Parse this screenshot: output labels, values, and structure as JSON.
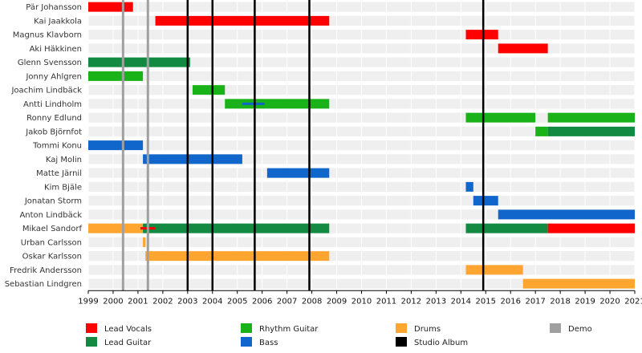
{
  "chart_data": {
    "type": "timeline",
    "title": "",
    "x_range": [
      1999,
      2021
    ],
    "x_ticks": [
      "1999",
      "2000",
      "2001",
      "2002",
      "2003",
      "2004",
      "2005",
      "2006",
      "2007",
      "2008",
      "2009",
      "2010",
      "2011",
      "2012",
      "2013",
      "2014",
      "2015",
      "2016",
      "2017",
      "2018",
      "2019",
      "2020",
      "2021"
    ],
    "colors": {
      "Lead Vocals": "#ff0000",
      "Lead Guitar": "#138a41",
      "Rhythm Guitar": "#19b319",
      "Bass": "#1166cc",
      "Drums": "#ffa530",
      "Studio Album": "#000000",
      "Demo": "#a0a0a0"
    },
    "members": [
      {
        "name": "Pär Johansson",
        "spans": [
          {
            "role": "Lead Vocals",
            "start": 1999.0,
            "end": 2000.8
          }
        ]
      },
      {
        "name": "Kai Jaakkola",
        "spans": [
          {
            "role": "Lead Vocals",
            "start": 2001.7,
            "end": 2008.7
          }
        ]
      },
      {
        "name": "Magnus Klavborn",
        "spans": [
          {
            "role": "Lead Vocals",
            "start": 2014.2,
            "end": 2015.5
          }
        ]
      },
      {
        "name": "Aki Häkkinen",
        "spans": [
          {
            "role": "Lead Vocals",
            "start": 2015.5,
            "end": 2017.5
          }
        ]
      },
      {
        "name": "Glenn Svensson",
        "spans": [
          {
            "role": "Lead Guitar",
            "start": 1999.0,
            "end": 2003.1
          }
        ]
      },
      {
        "name": "Jonny Ahlgren",
        "spans": [
          {
            "role": "Rhythm Guitar",
            "start": 1999.0,
            "end": 2001.2
          }
        ]
      },
      {
        "name": "Joachim Lindbäck",
        "spans": [
          {
            "role": "Rhythm Guitar",
            "start": 2003.2,
            "end": 2004.5
          }
        ]
      },
      {
        "name": "Antti Lindholm",
        "spans": [
          {
            "role": "Rhythm Guitar",
            "start": 2004.5,
            "end": 2008.7
          },
          {
            "role": "Bass",
            "start": 2005.2,
            "end": 2006.1,
            "thin": true
          }
        ]
      },
      {
        "name": "Ronny Edlund",
        "spans": [
          {
            "role": "Rhythm Guitar",
            "start": 2014.2,
            "end": 2017.0
          },
          {
            "role": "Rhythm Guitar",
            "start": 2017.5,
            "end": 2021.0
          }
        ]
      },
      {
        "name": "Jakob Björnfot",
        "spans": [
          {
            "role": "Rhythm Guitar",
            "start": 2017.0,
            "end": 2017.5
          },
          {
            "role": "Lead Guitar",
            "start": 2017.5,
            "end": 2021.0
          }
        ]
      },
      {
        "name": "Tommi Konu",
        "spans": [
          {
            "role": "Bass",
            "start": 1999.0,
            "end": 2001.2
          }
        ]
      },
      {
        "name": "Kaj Molin",
        "spans": [
          {
            "role": "Bass",
            "start": 2001.2,
            "end": 2005.2
          }
        ]
      },
      {
        "name": "Matte Järnil",
        "spans": [
          {
            "role": "Bass",
            "start": 2006.2,
            "end": 2008.7
          }
        ]
      },
      {
        "name": "Kim Bjäle",
        "spans": [
          {
            "role": "Bass",
            "start": 2014.2,
            "end": 2014.5
          }
        ]
      },
      {
        "name": "Jonatan Storm",
        "spans": [
          {
            "role": "Bass",
            "start": 2014.5,
            "end": 2015.5
          }
        ]
      },
      {
        "name": "Anton Lindbäck",
        "spans": [
          {
            "role": "Bass",
            "start": 2015.5,
            "end": 2021.0
          }
        ]
      },
      {
        "name": "Mikael Sandorf",
        "spans": [
          {
            "role": "Drums",
            "start": 1999.0,
            "end": 2001.2
          },
          {
            "role": "Lead Guitar",
            "start": 2001.2,
            "end": 2008.7
          },
          {
            "role": "Lead Vocals",
            "start": 2001.1,
            "end": 2001.7,
            "thin": true
          },
          {
            "role": "Lead Guitar",
            "start": 2014.2,
            "end": 2017.5
          },
          {
            "role": "Lead Vocals",
            "start": 2017.5,
            "end": 2021.0
          }
        ]
      },
      {
        "name": "Urban Carlsson",
        "spans": [
          {
            "role": "Drums",
            "start": 2001.2,
            "end": 2001.3
          }
        ]
      },
      {
        "name": "Oskar Karlsson",
        "spans": [
          {
            "role": "Drums",
            "start": 2001.3,
            "end": 2008.7
          }
        ]
      },
      {
        "name": "Fredrik Andersson",
        "spans": [
          {
            "role": "Drums",
            "start": 2014.2,
            "end": 2016.5
          }
        ]
      },
      {
        "name": "Sebastian Lindgren",
        "spans": [
          {
            "role": "Drums",
            "start": 2016.5,
            "end": 2021.0
          }
        ]
      }
    ],
    "events": [
      {
        "type": "Demo",
        "x": 2000.4
      },
      {
        "type": "Demo",
        "x": 2001.4
      },
      {
        "type": "Studio Album",
        "x": 2003.0
      },
      {
        "type": "Studio Album",
        "x": 2004.0
      },
      {
        "type": "Studio Album",
        "x": 2005.7
      },
      {
        "type": "Studio Album",
        "x": 2007.9
      },
      {
        "type": "Studio Album",
        "x": 2014.9
      }
    ],
    "legend": [
      "Lead Vocals",
      "Lead Guitar",
      "Rhythm Guitar",
      "Bass",
      "Drums",
      "Studio Album",
      "Demo"
    ],
    "legend_placement": "bottom"
  }
}
